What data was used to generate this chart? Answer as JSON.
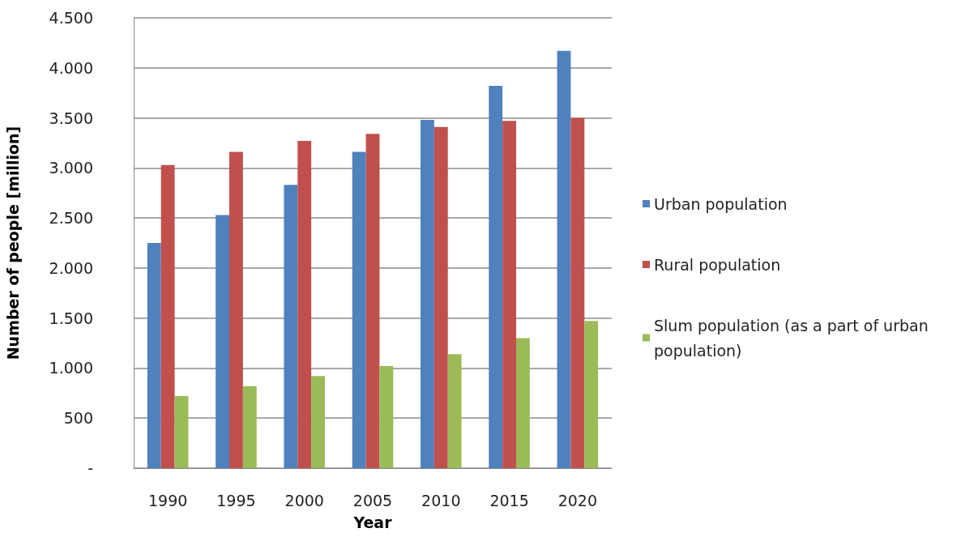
{
  "chart_data": {
    "type": "bar",
    "xlabel": "Year",
    "ylabel": "Number of people [million]",
    "categories": [
      "1990",
      "1995",
      "2000",
      "2005",
      "2010",
      "2015",
      "2020"
    ],
    "series": [
      {
        "name": "Urban population",
        "color": "#4f81bd",
        "values": [
          2250,
          2530,
          2830,
          3160,
          3480,
          3820,
          4170
        ]
      },
      {
        "name": "Rural population",
        "color": "#c0504d",
        "values": [
          3030,
          3160,
          3270,
          3340,
          3410,
          3470,
          3500
        ]
      },
      {
        "name": "Slum population (as a part of urban population)",
        "color": "#9bbb59",
        "values": [
          720,
          820,
          920,
          1020,
          1140,
          1300,
          1470
        ]
      }
    ],
    "ylim": [
      0,
      4500
    ],
    "yticks": [
      {
        "value": 0,
        "label": "-"
      },
      500,
      {
        "value": 1000,
        "label": "1.000"
      },
      {
        "value": 1500,
        "label": "1.500"
      },
      {
        "value": 2000,
        "label": "2.000"
      },
      {
        "value": 2500,
        "label": "2.500"
      },
      {
        "value": 3000,
        "label": "3.000"
      },
      {
        "value": 3500,
        "label": "3.500"
      },
      {
        "value": 4000,
        "label": "4.000"
      },
      {
        "value": 4500,
        "label": "4.500"
      }
    ],
    "grid": "y",
    "legend": "right"
  }
}
